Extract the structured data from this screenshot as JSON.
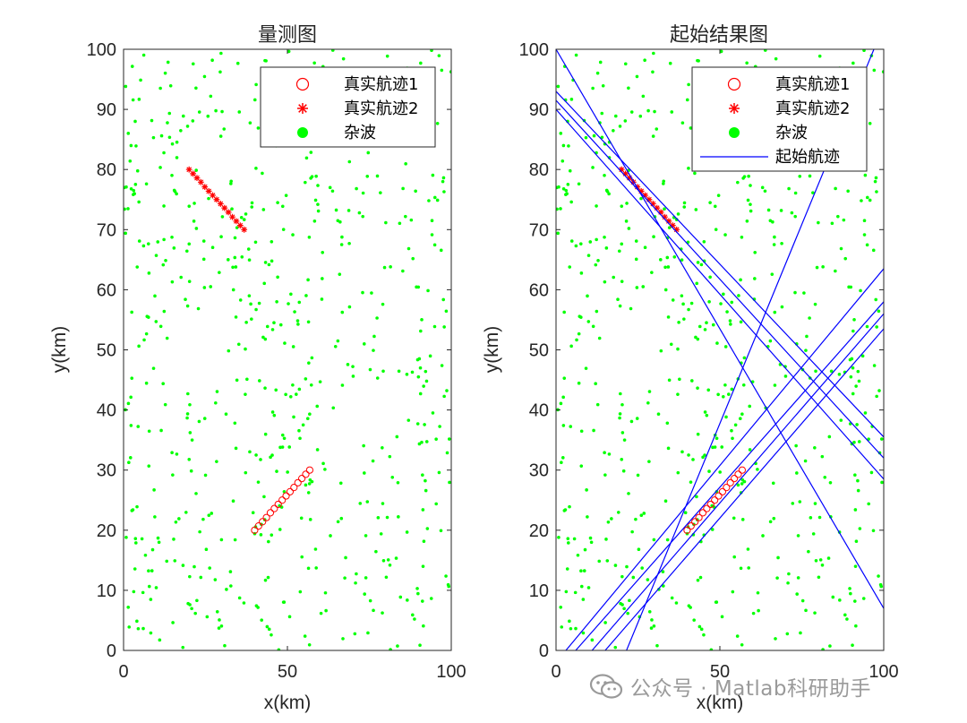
{
  "colors": {
    "clutter": "#00ff00",
    "truth": "#ff0000",
    "track": "#0000ff",
    "axis": "#262626"
  },
  "watermark": {
    "text": "公众号 · Matlab科研助手",
    "icon": "wechat-icon"
  },
  "chart_data": [
    {
      "type": "scatter",
      "title": "量测图",
      "xlabel": "x(km)",
      "ylabel": "y(km)",
      "xlim": [
        0,
        100
      ],
      "ylim": [
        0,
        100
      ],
      "xticks": [
        0,
        50,
        100
      ],
      "yticks": [
        0,
        10,
        20,
        30,
        40,
        50,
        60,
        70,
        80,
        90,
        100
      ],
      "legend": {
        "placement": "top-right",
        "entries": [
          "真实航迹1",
          "真实航迹2",
          "杂波"
        ]
      },
      "series": [
        {
          "name": "真实航迹1",
          "marker": "circle",
          "color": "#ff0000",
          "x": [
            40,
            41.2,
            42.4,
            43.6,
            44.8,
            46,
            47.2,
            48.4,
            49.6,
            50.8,
            52,
            53.2,
            54.4,
            55.6,
            56.8
          ],
          "y": [
            20,
            20.7,
            21.4,
            22.1,
            22.9,
            23.6,
            24.3,
            25,
            25.7,
            26.4,
            27.1,
            27.9,
            28.6,
            29.3,
            30
          ]
        },
        {
          "name": "真实航迹2",
          "marker": "asterisk",
          "color": "#ff0000",
          "x": [
            20,
            21.2,
            22.4,
            23.6,
            24.8,
            26,
            27.2,
            28.4,
            29.6,
            30.8,
            32,
            33.2,
            34.4,
            35.6,
            36.8
          ],
          "y": [
            80,
            79.3,
            78.6,
            77.9,
            77.1,
            76.4,
            75.7,
            75,
            74.3,
            73.6,
            72.9,
            72.1,
            71.4,
            70.7,
            70
          ]
        },
        {
          "name": "杂波",
          "marker": "dot",
          "color": "#00ff00",
          "count": 600,
          "distribution": "uniform over [0,100]×[0,100]"
        }
      ]
    },
    {
      "type": "line",
      "title": "起始结果图",
      "xlabel": "x(km)",
      "ylabel": "y(km)",
      "xlim": [
        0,
        100
      ],
      "ylim": [
        0,
        100
      ],
      "xticks": [
        0,
        50,
        100
      ],
      "yticks": [
        0,
        10,
        20,
        30,
        40,
        50,
        60,
        70,
        80,
        90,
        100
      ],
      "legend": {
        "placement": "top-right",
        "entries": [
          "真实航迹1",
          "真实航迹2",
          "杂波",
          "起始航迹"
        ]
      },
      "series": [
        {
          "name": "真实航迹1",
          "marker": "circle",
          "color": "#ff0000"
        },
        {
          "name": "真实航迹2",
          "marker": "asterisk",
          "color": "#ff0000"
        },
        {
          "name": "杂波",
          "marker": "dot",
          "color": "#00ff00",
          "count": 600
        },
        {
          "name": "起始航迹",
          "marker": "line",
          "color": "#0000ff",
          "lines": [
            {
              "x": [
                0,
                100
              ],
              "y": [
                100,
                7
              ]
            },
            {
              "x": [
                0,
                100
              ],
              "y": [
                93,
                35.5
              ]
            },
            {
              "x": [
                0,
                100
              ],
              "y": [
                91.5,
                32
              ]
            },
            {
              "x": [
                0,
                100
              ],
              "y": [
                90,
                28.5
              ]
            },
            {
              "x": [
                3,
                100
              ],
              "y": [
                0,
                63.5
              ]
            },
            {
              "x": [
                6,
                100
              ],
              "y": [
                0,
                58
              ]
            },
            {
              "x": [
                11,
                100
              ],
              "y": [
                0,
                56
              ]
            },
            {
              "x": [
                15,
                100
              ],
              "y": [
                0,
                53.5
              ]
            },
            {
              "x": [
                21.5,
                97
              ],
              "y": [
                0,
                100
              ]
            }
          ]
        }
      ]
    }
  ]
}
